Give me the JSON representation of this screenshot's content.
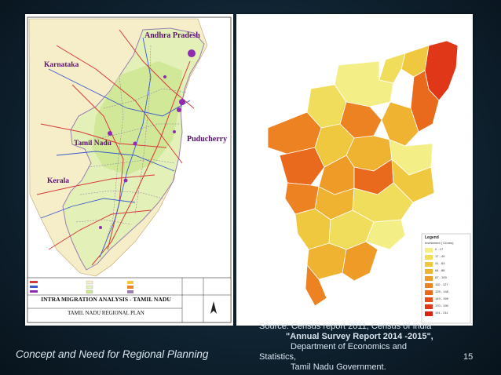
{
  "slide": {
    "footer_title": "Concept and Need for Regional Planning",
    "page_number": "15",
    "source_lines": [
      "Source: Census report 2011, Census of India",
      "\"Annual Survey Report 2014 -2015\",",
      "Department of Economics and",
      "Statistics,",
      "Tamil Nadu Government."
    ]
  },
  "left_map": {
    "labels": {
      "andhra": "Andhra Pradesh",
      "karnataka": "Karnataka",
      "tamilnadu": "Tamil Nadu",
      "pondicherry": "Puducherry",
      "kerala": "Kerala"
    },
    "title_block": {
      "title": "INTRA MIGRATION ANALYSIS - TAMIL NADU",
      "subtitle": "TAMIL NADU REGIONAL PLAN"
    }
  },
  "right_map": {
    "legend": {
      "title": "Legend",
      "subtitle": "Investment ( Crores)",
      "items": [
        {
          "label": "0 - 17",
          "color": "#f3ef86"
        },
        {
          "label": "17 - 40",
          "color": "#f1dd5c"
        },
        {
          "label": "41 - 63",
          "color": "#f0c840"
        },
        {
          "label": "64 - 86",
          "color": "#f0b231"
        },
        {
          "label": "87 - 109",
          "color": "#ee9b28"
        },
        {
          "label": "110 - 127",
          "color": "#ec8222"
        },
        {
          "label": "128 - 148",
          "color": "#e9691d"
        },
        {
          "label": "149 - 169",
          "color": "#e54f19"
        },
        {
          "label": "170 - 190",
          "color": "#df3717"
        },
        {
          "label": "191 - 211",
          "color": "#d62315"
        }
      ]
    }
  }
}
